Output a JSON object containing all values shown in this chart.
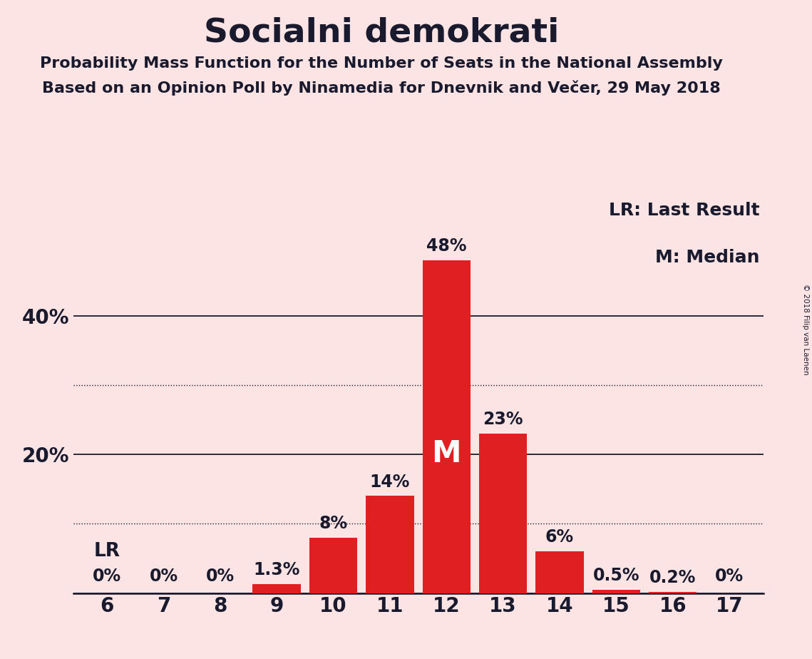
{
  "title": "Socialni demokrati",
  "subtitle1": "Probability Mass Function for the Number of Seats in the National Assembly",
  "subtitle2": "Based on an Opinion Poll by Ninamedia for Dnevnik and Večer, 29 May 2018",
  "copyright": "© 2018 Filip van Laenen",
  "categories": [
    6,
    7,
    8,
    9,
    10,
    11,
    12,
    13,
    14,
    15,
    16,
    17
  ],
  "values": [
    0.0,
    0.0,
    0.0,
    1.3,
    8.0,
    14.0,
    48.0,
    23.0,
    6.0,
    0.5,
    0.2,
    0.0
  ],
  "labels": [
    "0%",
    "0%",
    "0%",
    "1.3%",
    "8%",
    "14%",
    "48%",
    "23%",
    "6%",
    "0.5%",
    "0.2%",
    "0%"
  ],
  "bar_color": "#e02020",
  "background_color": "#fce4e4",
  "title_fontsize": 34,
  "subtitle_fontsize": 16,
  "label_fontsize": 17,
  "axis_fontsize": 20,
  "solid_gridlines": [
    0,
    20,
    40
  ],
  "dotted_gridlines": [
    10,
    30
  ],
  "ylim": [
    0,
    57
  ],
  "median_seat": 12,
  "lr_seat": 6,
  "legend_text1": "LR: Last Result",
  "legend_text2": "M: Median",
  "lr_label": "LR",
  "median_label": "M",
  "text_color": "#1a1a2e",
  "white_color": "#ffffff"
}
